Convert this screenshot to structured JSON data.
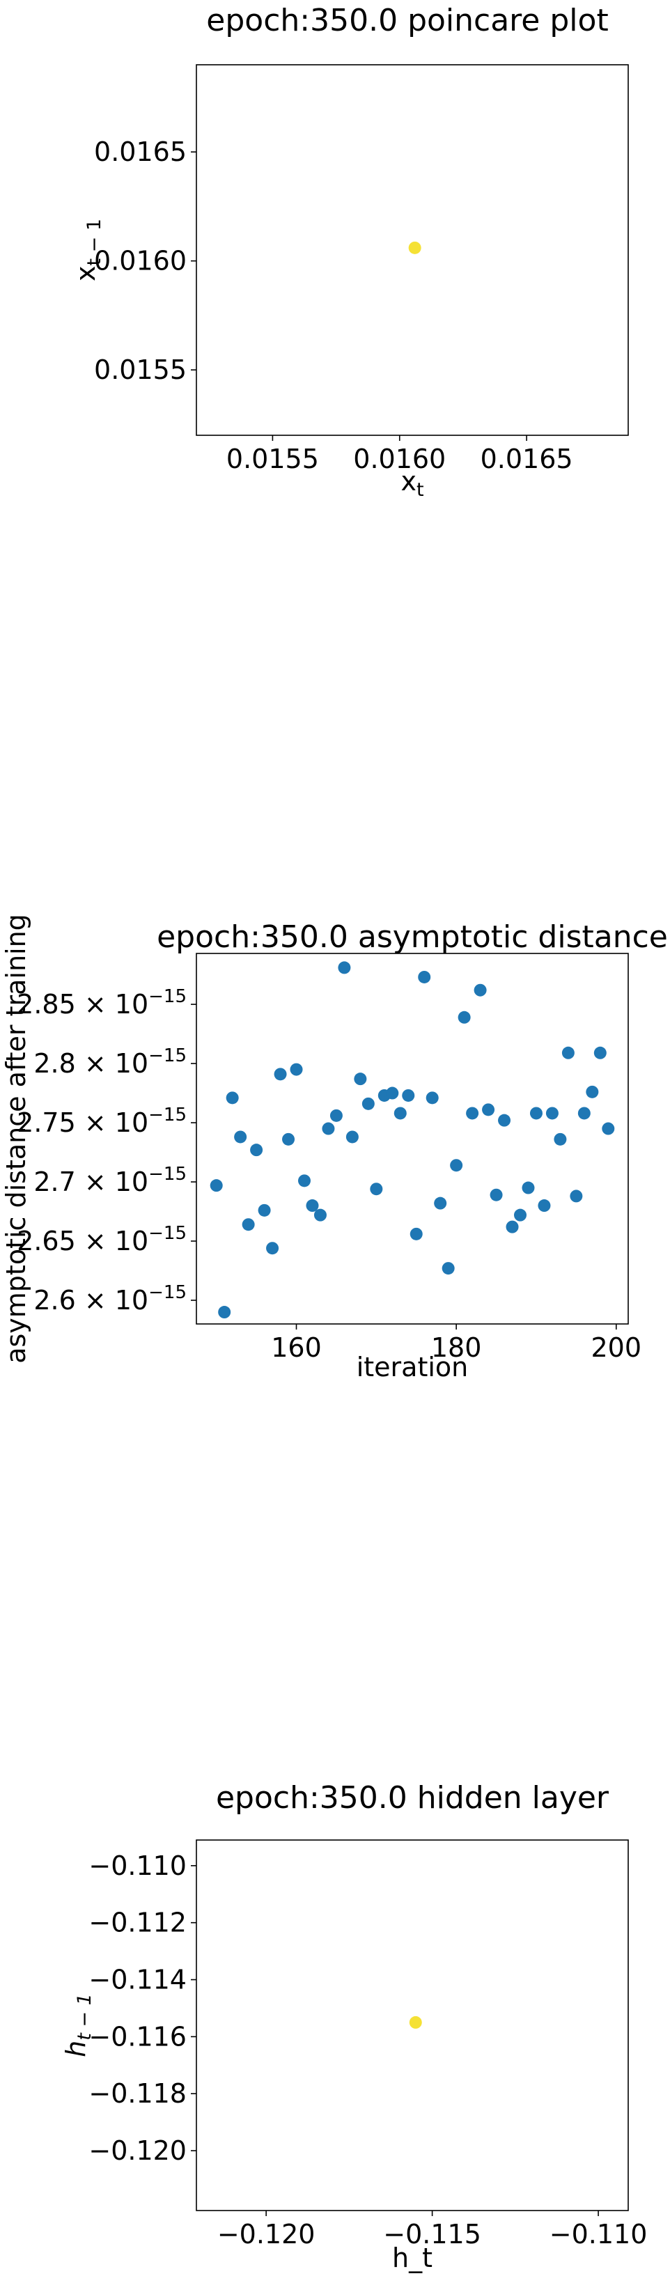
{
  "chart_data": [
    {
      "type": "scatter",
      "title": "epoch:350.0 poincare plot",
      "xlabel": "x_t",
      "ylabel": "x_{t-1}",
      "xlim": [
        0.0152,
        0.0169
      ],
      "ylim": [
        0.0152,
        0.0169
      ],
      "xticks": [
        0.0155,
        0.016,
        0.0165
      ],
      "xtick_labels": [
        "0.0155",
        "0.0160",
        "0.0165"
      ],
      "yticks": [
        0.0155,
        0.016,
        0.0165
      ],
      "ytick_labels": [
        "0.0155",
        "0.0160",
        "0.0165"
      ],
      "point_color": "#f5e135",
      "points": [
        [
          0.01606,
          0.01606
        ]
      ],
      "grid": false,
      "legend": "none"
    },
    {
      "type": "scatter",
      "title": "epoch:350.0 asymptotic distance",
      "xlabel": "iteration",
      "ylabel": "asymptotic distance after training",
      "xlim": [
        147.5,
        201.5
      ],
      "ylim": [
        2.58e-15,
        2.893e-15
      ],
      "xticks": [
        160,
        180,
        200
      ],
      "xtick_labels": [
        "160",
        "180",
        "200"
      ],
      "yticks": [
        2.6e-15,
        2.65e-15,
        2.7e-15,
        2.75e-15,
        2.8e-15,
        2.85e-15
      ],
      "ytick_labels": [
        "2.6×10⁻¹⁵",
        "2.65×10⁻¹⁵",
        "2.7×10⁻¹⁵",
        "2.75×10⁻¹⁵",
        "2.8×10⁻¹⁵",
        "2.85×10⁻¹⁵"
      ],
      "point_color": "#1f77b4",
      "x": [
        150,
        151,
        152,
        153,
        154,
        155,
        156,
        157,
        158,
        159,
        160,
        161,
        162,
        163,
        164,
        165,
        166,
        167,
        168,
        169,
        170,
        171,
        172,
        173,
        174,
        175,
        176,
        177,
        178,
        179,
        180,
        181,
        182,
        183,
        184,
        185,
        186,
        187,
        188,
        189,
        190,
        191,
        192,
        193,
        194,
        195,
        196,
        197,
        198,
        199
      ],
      "y": [
        2.697e-15,
        2.59e-15,
        2.771e-15,
        2.738e-15,
        2.664e-15,
        2.727e-15,
        2.676e-15,
        2.644e-15,
        2.791e-15,
        2.736e-15,
        2.795e-15,
        2.701e-15,
        2.68e-15,
        2.672e-15,
        2.745e-15,
        2.756e-15,
        2.881e-15,
        2.738e-15,
        2.787e-15,
        2.766e-15,
        2.694e-15,
        2.773e-15,
        2.775e-15,
        2.758e-15,
        2.773e-15,
        2.656e-15,
        2.873e-15,
        2.771e-15,
        2.682e-15,
        2.627e-15,
        2.714e-15,
        2.839e-15,
        2.758e-15,
        2.862e-15,
        2.761e-15,
        2.689e-15,
        2.752e-15,
        2.662e-15,
        2.672e-15,
        2.695e-15,
        2.758e-15,
        2.68e-15,
        2.758e-15,
        2.736e-15,
        2.809e-15,
        2.688e-15,
        2.758e-15,
        2.776e-15,
        2.809e-15,
        2.745e-15
      ],
      "grid": false,
      "legend": "none"
    },
    {
      "type": "scatter",
      "title": "epoch:350.0 hidden layer",
      "xlabel": "h_t",
      "ylabel": "h_{t-1}",
      "xlim": [
        -0.1221,
        -0.1091
      ],
      "ylim": [
        -0.1221,
        -0.1091
      ],
      "xticks": [
        -0.12,
        -0.115,
        -0.11
      ],
      "xtick_labels": [
        "−0.120",
        "−0.115",
        "−0.110"
      ],
      "yticks": [
        -0.12,
        -0.118,
        -0.116,
        -0.114,
        -0.112,
        -0.11
      ],
      "ytick_labels": [
        "−0.120",
        "−0.118",
        "−0.116",
        "−0.114",
        "−0.112",
        "−0.110"
      ],
      "point_color": "#f5e135",
      "points": [
        [
          -0.1155,
          -0.1155
        ]
      ],
      "grid": false,
      "legend": "none"
    }
  ]
}
